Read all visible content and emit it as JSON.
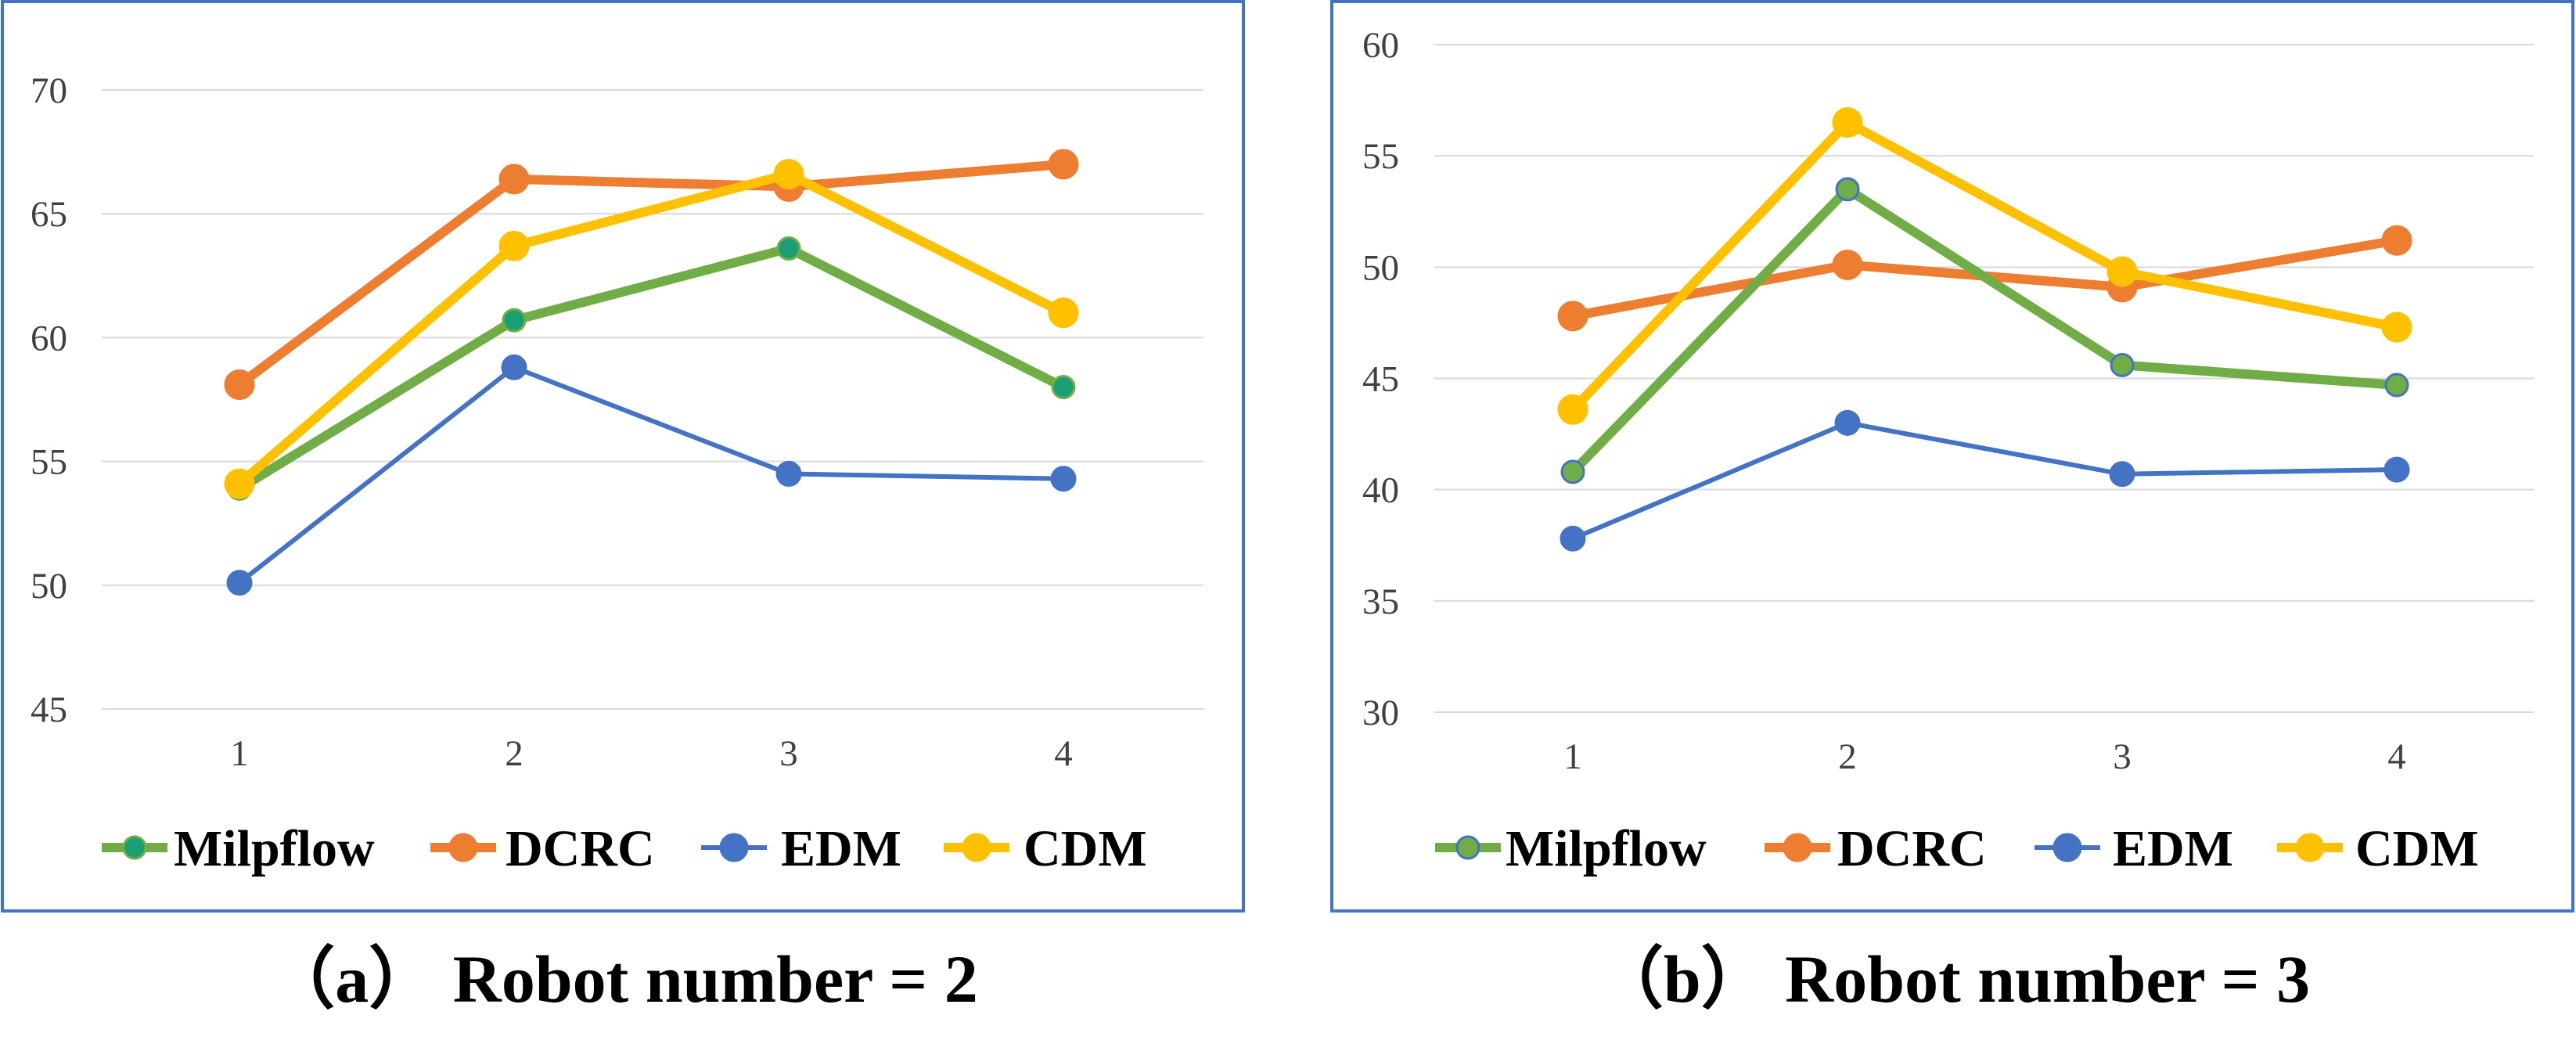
{
  "colors": {
    "Milpflow": "#70ad47",
    "DCRC": "#ed7d31",
    "EDM": "#4472c4",
    "CDM": "#ffc000",
    "gridline": "#d9d9d9",
    "frame": "#4472c4",
    "milpflow_marker_fill": "#1a9e74"
  },
  "chart_data": [
    {
      "type": "line",
      "caption": "（a） Robot number = 2",
      "categories": [
        "1",
        "2",
        "3",
        "4"
      ],
      "ylim": [
        45,
        70
      ],
      "yticks": [
        45,
        50,
        55,
        60,
        65,
        70
      ],
      "grid": true,
      "legend_position": "bottom",
      "series": [
        {
          "name": "Milpflow",
          "values": [
            53.9,
            60.7,
            63.6,
            58.0
          ]
        },
        {
          "name": "DCRC",
          "values": [
            58.1,
            66.4,
            66.1,
            67.0
          ]
        },
        {
          "name": "EDM",
          "values": [
            50.1,
            58.8,
            54.5,
            54.3
          ]
        },
        {
          "name": "CDM",
          "values": [
            54.1,
            63.7,
            66.6,
            61.0
          ]
        }
      ]
    },
    {
      "type": "line",
      "caption": "（b） Robot number = 3",
      "categories": [
        "1",
        "2",
        "3",
        "4"
      ],
      "ylim": [
        30,
        60
      ],
      "yticks": [
        30,
        35,
        40,
        45,
        50,
        55,
        60
      ],
      "grid": true,
      "legend_position": "bottom",
      "series": [
        {
          "name": "Milpflow",
          "values": [
            40.8,
            53.5,
            45.6,
            44.7
          ]
        },
        {
          "name": "DCRC",
          "values": [
            47.8,
            50.1,
            49.1,
            51.2
          ]
        },
        {
          "name": "EDM",
          "values": [
            37.8,
            43.0,
            40.7,
            40.9
          ]
        },
        {
          "name": "CDM",
          "values": [
            43.6,
            56.5,
            49.8,
            47.3
          ]
        }
      ]
    }
  ]
}
